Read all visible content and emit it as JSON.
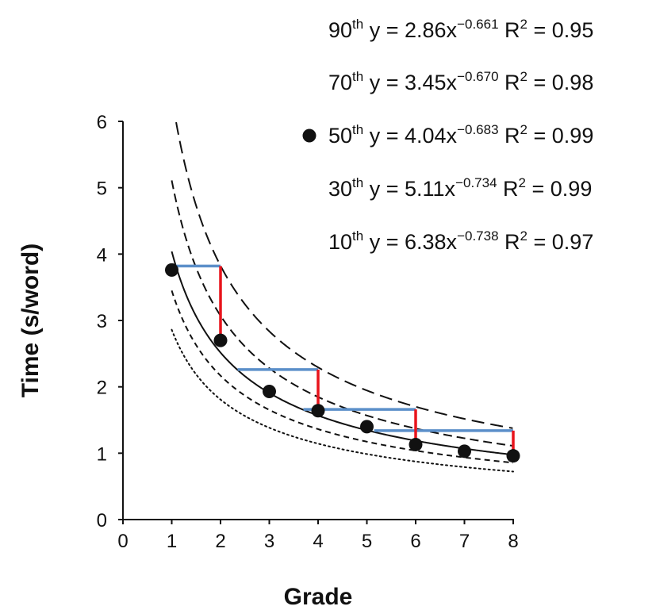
{
  "chart_data": {
    "type": "scatter",
    "xlabel": "Grade",
    "ylabel": "Time (s/word)",
    "xlim": [
      0,
      8
    ],
    "ylim": [
      0,
      6
    ],
    "x_ticks": [
      "0",
      "1",
      "2",
      "3",
      "4",
      "5",
      "6",
      "7",
      "8"
    ],
    "y_ticks": [
      "0",
      "1",
      "2",
      "3",
      "4",
      "5",
      "6"
    ],
    "grid": false,
    "legend_position": "top-right",
    "points_50th": {
      "x": [
        1,
        2,
        3,
        4,
        5,
        6,
        7,
        8
      ],
      "y": [
        3.76,
        2.7,
        1.93,
        1.64,
        1.4,
        1.13,
        1.03,
        0.96
      ]
    },
    "curves": [
      {
        "percentile": "90",
        "coef": 2.86,
        "exp": -0.661,
        "r2": "0.95",
        "style": "dotted"
      },
      {
        "percentile": "70",
        "coef": 3.45,
        "exp": -0.67,
        "r2": "0.98",
        "style": "short-dash"
      },
      {
        "percentile": "50",
        "coef": 4.04,
        "exp": -0.683,
        "r2": "0.99",
        "style": "solid"
      },
      {
        "percentile": "30",
        "coef": 5.11,
        "exp": -0.734,
        "r2": "0.99",
        "style": "medium-dash"
      },
      {
        "percentile": "10",
        "coef": 6.38,
        "exp": -0.738,
        "r2": "0.97",
        "style": "long-dash"
      }
    ],
    "blue_segments": [
      {
        "x1": 1.0,
        "x2": 2.0,
        "y": 3.82
      },
      {
        "x1": 2.35,
        "x2": 4.0,
        "y": 2.26
      },
      {
        "x1": 3.7,
        "x2": 6.0,
        "y": 1.66
      },
      {
        "x1": 5.15,
        "x2": 8.0,
        "y": 1.34
      }
    ],
    "red_segments": [
      {
        "x": 2,
        "y1": 2.7,
        "y2": 3.82
      },
      {
        "x": 4,
        "y1": 1.64,
        "y2": 2.26
      },
      {
        "x": 6,
        "y1": 1.13,
        "y2": 1.66
      },
      {
        "x": 8,
        "y1": 0.96,
        "y2": 1.34
      }
    ],
    "legend": [
      {
        "pct": "90",
        "sup": "th",
        "eq_prefix": "y = 2.86x",
        "eq_exp": "−0.661",
        "r2_label": "R",
        "r2_sup": "2",
        "r2_value": " = 0.95",
        "marker": false
      },
      {
        "pct": "70",
        "sup": "th",
        "eq_prefix": "y = 3.45x",
        "eq_exp": "−0.670",
        "r2_label": "R",
        "r2_sup": "2",
        "r2_value": " = 0.98",
        "marker": false
      },
      {
        "pct": "50",
        "sup": "th",
        "eq_prefix": "y = 4.04x",
        "eq_exp": "−0.683",
        "r2_label": "R",
        "r2_sup": "2",
        "r2_value": " = 0.99",
        "marker": true
      },
      {
        "pct": "30",
        "sup": "th",
        "eq_prefix": "y = 5.11x",
        "eq_exp": "−0.734",
        "r2_label": "R",
        "r2_sup": "2",
        "r2_value": " = 0.99",
        "marker": false
      },
      {
        "pct": "10",
        "sup": "th",
        "eq_prefix": "y = 6.38x",
        "eq_exp": "−0.738",
        "r2_label": "R",
        "r2_sup": "2",
        "r2_value": " = 0.97",
        "marker": false
      }
    ],
    "colors": {
      "blue": "#5b8fc9",
      "red": "#e8141c",
      "black": "#111111"
    }
  }
}
